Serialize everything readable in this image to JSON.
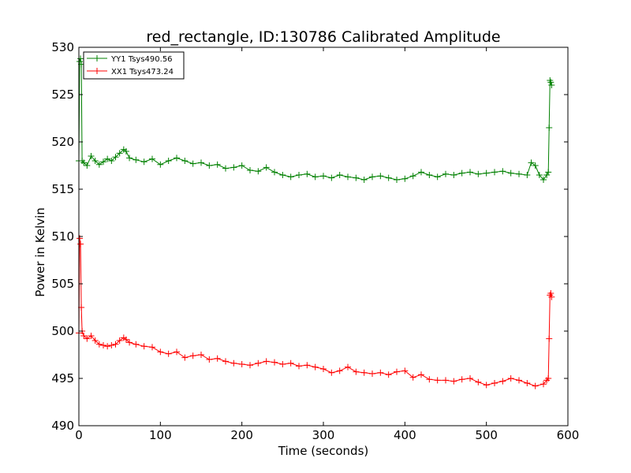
{
  "chart_data": {
    "type": "line",
    "title": "red_rectangle, ID:130786 Calibrated Amplitude",
    "xlabel": "Time (seconds)",
    "ylabel": "Power in Kelvin",
    "xlim": [
      0,
      600
    ],
    "ylim": [
      490,
      530
    ],
    "xticks": [
      0,
      100,
      200,
      300,
      400,
      500,
      600
    ],
    "yticks": [
      490,
      495,
      500,
      505,
      510,
      515,
      520,
      525,
      530
    ],
    "grid": false,
    "legend_position": "top-left",
    "marker": "plus",
    "series": [
      {
        "name": "YY1 Tsys490.56",
        "color": "#008000",
        "x": [
          0,
          1,
          2,
          3,
          4,
          6,
          10,
          15,
          20,
          25,
          30,
          35,
          40,
          45,
          50,
          55,
          58,
          62,
          70,
          80,
          90,
          100,
          110,
          120,
          130,
          140,
          150,
          160,
          170,
          180,
          190,
          200,
          210,
          220,
          230,
          240,
          250,
          260,
          270,
          280,
          290,
          300,
          310,
          320,
          330,
          340,
          350,
          360,
          370,
          380,
          390,
          400,
          410,
          420,
          430,
          440,
          450,
          460,
          470,
          480,
          490,
          500,
          510,
          520,
          530,
          540,
          550,
          555,
          560,
          565,
          570,
          574,
          576,
          577,
          578,
          579,
          580
        ],
        "values": [
          518,
          528.5,
          528.8,
          528.2,
          518,
          517.8,
          517.5,
          518.5,
          518.0,
          517.6,
          517.9,
          518.2,
          518.0,
          518.4,
          518.8,
          519.2,
          519.0,
          518.3,
          518.1,
          517.9,
          518.2,
          517.6,
          518.0,
          518.3,
          518.0,
          517.7,
          517.8,
          517.5,
          517.6,
          517.2,
          517.3,
          517.5,
          517.0,
          516.9,
          517.3,
          516.8,
          516.5,
          516.3,
          516.5,
          516.6,
          516.3,
          516.4,
          516.2,
          516.5,
          516.3,
          516.2,
          516.0,
          516.3,
          516.4,
          516.2,
          516.0,
          516.1,
          516.4,
          516.8,
          516.5,
          516.3,
          516.6,
          516.5,
          516.7,
          516.8,
          516.6,
          516.7,
          516.8,
          516.9,
          516.7,
          516.6,
          516.5,
          517.8,
          517.5,
          516.5,
          516.0,
          516.5,
          516.8,
          521.5,
          526.5,
          526.3,
          526.0
        ]
      },
      {
        "name": "XX1 Tsys473.24",
        "color": "#ff0000",
        "x": [
          0,
          1,
          2,
          3,
          4,
          6,
          10,
          15,
          20,
          25,
          30,
          35,
          40,
          45,
          50,
          55,
          58,
          62,
          70,
          80,
          90,
          100,
          110,
          120,
          130,
          140,
          150,
          160,
          170,
          180,
          190,
          200,
          210,
          220,
          230,
          240,
          250,
          260,
          270,
          280,
          290,
          300,
          310,
          320,
          330,
          340,
          350,
          360,
          370,
          380,
          390,
          400,
          410,
          420,
          430,
          440,
          450,
          460,
          470,
          480,
          490,
          500,
          510,
          520,
          530,
          540,
          550,
          560,
          570,
          574,
          576,
          577,
          578,
          579,
          580
        ],
        "values": [
          499.8,
          509.8,
          509.2,
          502.5,
          500.0,
          499.5,
          499.2,
          499.5,
          499.0,
          498.6,
          498.5,
          498.4,
          498.5,
          498.6,
          499.0,
          499.3,
          499.1,
          498.8,
          498.6,
          498.4,
          498.3,
          497.8,
          497.6,
          497.8,
          497.2,
          497.4,
          497.5,
          497.0,
          497.1,
          496.8,
          496.6,
          496.5,
          496.4,
          496.6,
          496.8,
          496.7,
          496.5,
          496.6,
          496.3,
          496.4,
          496.2,
          496.0,
          495.6,
          495.8,
          496.2,
          495.7,
          495.6,
          495.5,
          495.6,
          495.4,
          495.7,
          495.8,
          495.1,
          495.4,
          494.9,
          494.8,
          494.8,
          494.7,
          494.9,
          495.0,
          494.6,
          494.3,
          494.5,
          494.7,
          495.0,
          494.8,
          494.5,
          494.2,
          494.4,
          494.8,
          495.0,
          499.2,
          503.8,
          504.0,
          503.6
        ]
      }
    ]
  }
}
